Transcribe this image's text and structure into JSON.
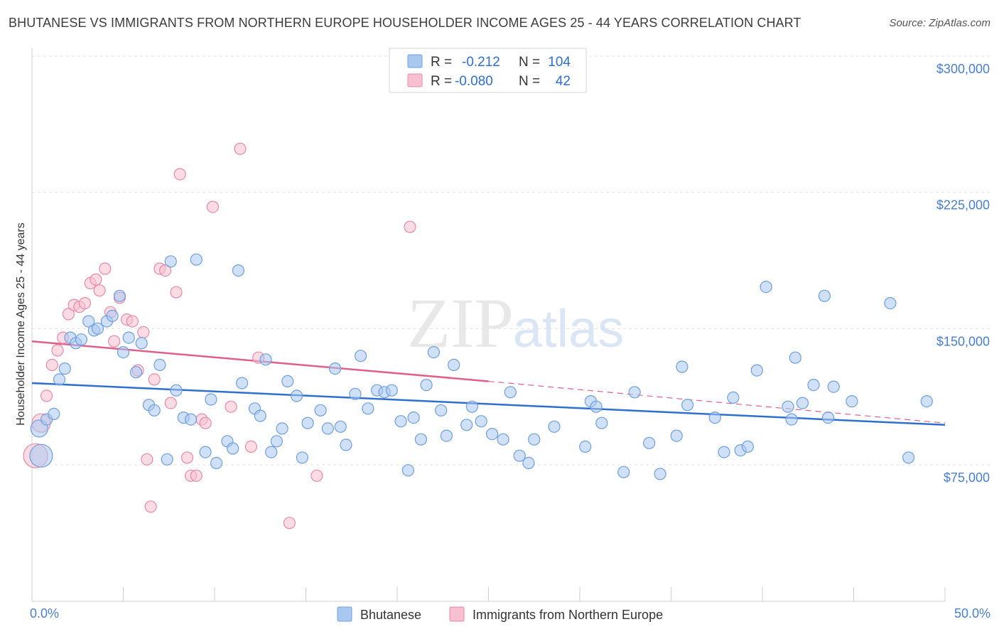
{
  "header": {
    "title": "BHUTANESE VS IMMIGRANTS FROM NORTHERN EUROPE HOUSEHOLDER INCOME AGES 25 - 44 YEARS CORRELATION CHART",
    "source": "Source: ZipAtlas.com"
  },
  "watermark": {
    "zip": "ZIP",
    "atlas": "atlas"
  },
  "colors": {
    "blue_fill": "#a9c8f0",
    "blue_stroke": "#6e9fe0",
    "blue_line": "#2f6fd0",
    "pink_fill": "#f7bfd0",
    "pink_stroke": "#e88aa8",
    "pink_line": "#e0608a",
    "tick_text": "#4a7fd0",
    "grid": "#e3e3e3"
  },
  "legend": {
    "rows": [
      {
        "r_label": "R =",
        "r_value": "-0.212",
        "n_label": "N =",
        "n_value": "104"
      },
      {
        "r_label": "R =",
        "r_value": "-0.080",
        "n_label": "N =",
        "n_value": "42"
      }
    ]
  },
  "bottom_legend": {
    "items": [
      "Bhutanese",
      "Immigrants from Northern Europe"
    ]
  },
  "chart_data": {
    "type": "scatter",
    "ylabel": "Householder Income Ages 25 - 44 years",
    "xlabel": "",
    "xlim": [
      0,
      50
    ],
    "ylim": [
      0,
      310000
    ],
    "x_tick_labels": [
      "0.0%",
      "50.0%"
    ],
    "y_ticks": [
      75000,
      150000,
      225000,
      300000
    ],
    "y_tick_labels": [
      "$75,000",
      "$150,000",
      "$225,000",
      "$300,000"
    ],
    "grid": true,
    "series": [
      {
        "name": "Bhutanese",
        "points": [
          [
            0.4,
            95000
          ],
          [
            0.5,
            80000
          ],
          [
            0.8,
            100000
          ],
          [
            1.2,
            103000
          ],
          [
            1.5,
            122000
          ],
          [
            1.8,
            128000
          ],
          [
            2.1,
            145000
          ],
          [
            2.4,
            142000
          ],
          [
            2.7,
            144000
          ],
          [
            3.1,
            154000
          ],
          [
            3.4,
            149000
          ],
          [
            3.6,
            150000
          ],
          [
            4.1,
            154000
          ],
          [
            4.4,
            157000
          ],
          [
            4.8,
            168000
          ],
          [
            5.0,
            137000
          ],
          [
            5.3,
            145000
          ],
          [
            5.7,
            126000
          ],
          [
            6.0,
            142000
          ],
          [
            6.4,
            108000
          ],
          [
            6.7,
            105000
          ],
          [
            7.0,
            130000
          ],
          [
            7.4,
            78000
          ],
          [
            7.6,
            187000
          ],
          [
            7.9,
            116000
          ],
          [
            8.3,
            101000
          ],
          [
            8.7,
            100000
          ],
          [
            9.0,
            188000
          ],
          [
            9.5,
            82000
          ],
          [
            9.8,
            111000
          ],
          [
            10.1,
            76000
          ],
          [
            10.7,
            88000
          ],
          [
            11.0,
            84000
          ],
          [
            11.3,
            182000
          ],
          [
            11.5,
            120000
          ],
          [
            12.2,
            106000
          ],
          [
            12.5,
            102000
          ],
          [
            12.8,
            133000
          ],
          [
            13.1,
            82000
          ],
          [
            13.4,
            88000
          ],
          [
            13.7,
            95000
          ],
          [
            14.0,
            121000
          ],
          [
            14.5,
            113000
          ],
          [
            14.8,
            79000
          ],
          [
            15.1,
            98000
          ],
          [
            15.8,
            105000
          ],
          [
            16.2,
            95000
          ],
          [
            16.6,
            128000
          ],
          [
            16.9,
            96000
          ],
          [
            17.2,
            86000
          ],
          [
            17.7,
            114000
          ],
          [
            18.0,
            135000
          ],
          [
            18.4,
            106000
          ],
          [
            18.9,
            116000
          ],
          [
            19.3,
            115000
          ],
          [
            19.7,
            116000
          ],
          [
            20.2,
            99000
          ],
          [
            20.6,
            72000
          ],
          [
            20.9,
            101000
          ],
          [
            21.3,
            89000
          ],
          [
            21.6,
            119000
          ],
          [
            22.0,
            137000
          ],
          [
            22.4,
            105000
          ],
          [
            22.7,
            91000
          ],
          [
            23.1,
            130000
          ],
          [
            23.8,
            97000
          ],
          [
            24.1,
            107000
          ],
          [
            24.6,
            99000
          ],
          [
            25.2,
            92000
          ],
          [
            25.8,
            89000
          ],
          [
            26.2,
            115000
          ],
          [
            26.7,
            80000
          ],
          [
            27.2,
            76000
          ],
          [
            27.5,
            89000
          ],
          [
            28.6,
            96000
          ],
          [
            30.3,
            85000
          ],
          [
            30.6,
            110000
          ],
          [
            30.9,
            107000
          ],
          [
            31.2,
            98000
          ],
          [
            32.4,
            71000
          ],
          [
            33.0,
            115000
          ],
          [
            33.8,
            87000
          ],
          [
            34.4,
            70000
          ],
          [
            35.3,
            91000
          ],
          [
            35.6,
            129000
          ],
          [
            35.9,
            108000
          ],
          [
            37.4,
            101000
          ],
          [
            37.9,
            82000
          ],
          [
            38.4,
            112000
          ],
          [
            38.8,
            83000
          ],
          [
            39.2,
            85000
          ],
          [
            39.7,
            127000
          ],
          [
            40.2,
            173000
          ],
          [
            41.4,
            107000
          ],
          [
            41.6,
            100000
          ],
          [
            41.8,
            134000
          ],
          [
            42.2,
            109000
          ],
          [
            42.8,
            119000
          ],
          [
            43.4,
            168000
          ],
          [
            43.6,
            101000
          ],
          [
            43.9,
            118000
          ],
          [
            44.9,
            110000
          ],
          [
            47.0,
            164000
          ],
          [
            48.0,
            79000
          ],
          [
            49.0,
            110000
          ]
        ]
      },
      {
        "name": "Immigrants from Northern Europe",
        "points": [
          [
            0.2,
            80000
          ],
          [
            0.5,
            98000
          ],
          [
            0.8,
            113000
          ],
          [
            1.1,
            130000
          ],
          [
            1.4,
            138000
          ],
          [
            1.7,
            145000
          ],
          [
            2.0,
            158000
          ],
          [
            2.3,
            163000
          ],
          [
            2.6,
            162000
          ],
          [
            2.9,
            164000
          ],
          [
            3.2,
            175000
          ],
          [
            3.5,
            177000
          ],
          [
            3.7,
            171000
          ],
          [
            4.0,
            183000
          ],
          [
            4.3,
            159000
          ],
          [
            4.5,
            143000
          ],
          [
            4.8,
            167000
          ],
          [
            5.2,
            155000
          ],
          [
            5.5,
            154000
          ],
          [
            5.8,
            127000
          ],
          [
            6.1,
            148000
          ],
          [
            6.3,
            78000
          ],
          [
            6.5,
            52000
          ],
          [
            6.7,
            122000
          ],
          [
            7.0,
            183000
          ],
          [
            7.3,
            182000
          ],
          [
            7.6,
            109000
          ],
          [
            7.9,
            170000
          ],
          [
            8.1,
            235000
          ],
          [
            8.5,
            79000
          ],
          [
            8.7,
            69000
          ],
          [
            9.0,
            69000
          ],
          [
            9.3,
            100000
          ],
          [
            9.5,
            98000
          ],
          [
            9.9,
            217000
          ],
          [
            10.9,
            107000
          ],
          [
            11.4,
            249000
          ],
          [
            12.0,
            85000
          ],
          [
            12.4,
            134000
          ],
          [
            14.1,
            43000
          ],
          [
            15.6,
            69000
          ],
          [
            20.7,
            206000
          ]
        ]
      }
    ],
    "trendlines": [
      {
        "name": "Bhutanese",
        "from": [
          0,
          120000
        ],
        "to": [
          50,
          97000
        ]
      },
      {
        "name": "Immigrants from Northern Europe",
        "from": [
          0,
          143000
        ],
        "to": [
          25,
          121000
        ],
        "dashed_to": [
          50,
          98000
        ]
      }
    ]
  }
}
